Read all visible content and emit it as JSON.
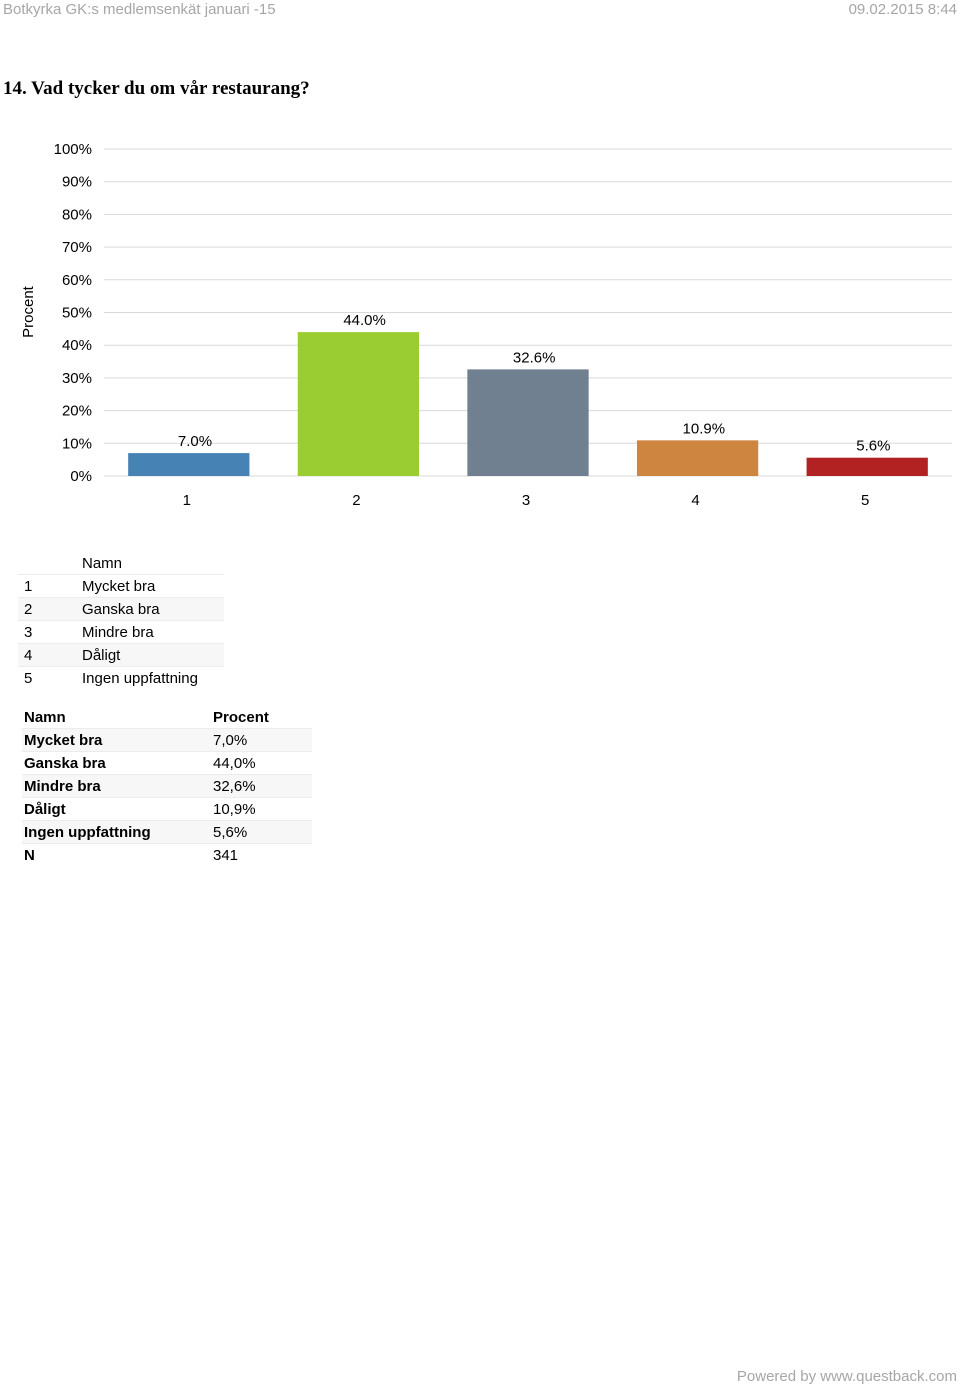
{
  "header": {
    "survey_title": "Botkyrka GK:s medlemsenkät januari -15",
    "timestamp": "09.02.2015 8:44"
  },
  "question": "14. Vad tycker du om vår restaurang?",
  "chart_data": {
    "type": "bar",
    "title": "",
    "xlabel": "",
    "ylabel": "Procent",
    "categories": [
      "1",
      "2",
      "3",
      "4",
      "5"
    ],
    "values": [
      7.0,
      44.0,
      32.6,
      10.9,
      5.6
    ],
    "data_labels": [
      "7.0%",
      "44.0%",
      "32.6%",
      "10.9%",
      "5.6%"
    ],
    "ylim": [
      0,
      100
    ],
    "yticks": [
      "0%",
      "10%",
      "20%",
      "30%",
      "40%",
      "50%",
      "60%",
      "70%",
      "80%",
      "90%",
      "100%"
    ],
    "colors": [
      "#4682b4",
      "#9acd32",
      "#708090",
      "#cd853f",
      "#b22222"
    ],
    "grid": true
  },
  "legend_table": {
    "header": "Namn",
    "rows": [
      {
        "num": "1",
        "name": "Mycket bra"
      },
      {
        "num": "2",
        "name": "Ganska bra"
      },
      {
        "num": "3",
        "name": "Mindre bra"
      },
      {
        "num": "4",
        "name": "Dåligt"
      },
      {
        "num": "5",
        "name": "Ingen uppfattning"
      }
    ]
  },
  "data_table": {
    "headers": [
      "Namn",
      "Procent"
    ],
    "rows": [
      {
        "name": "Mycket bra",
        "value": "7,0%"
      },
      {
        "name": "Ganska bra",
        "value": "44,0%"
      },
      {
        "name": "Mindre bra",
        "value": "32,6%"
      },
      {
        "name": "Dåligt",
        "value": "10,9%"
      },
      {
        "name": "Ingen uppfattning",
        "value": "5,6%"
      },
      {
        "name": "N",
        "value": "341"
      }
    ]
  },
  "footer": "Powered by www.questback.com"
}
